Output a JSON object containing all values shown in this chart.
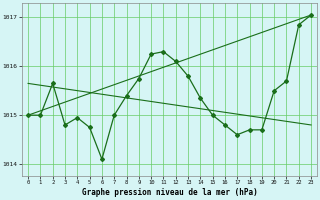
{
  "title": "Graphe pression niveau de la mer (hPa)",
  "bg_color": "#d6f5f5",
  "grid_color": "#66cc66",
  "line_color": "#1a6e1a",
  "hours": [
    0,
    1,
    2,
    3,
    4,
    5,
    6,
    7,
    8,
    9,
    10,
    11,
    12,
    13,
    14,
    15,
    16,
    17,
    18,
    19,
    20,
    21,
    22,
    23
  ],
  "pressure": [
    1015.0,
    1015.0,
    1015.65,
    1014.8,
    1014.95,
    1014.75,
    1014.1,
    1015.0,
    1015.4,
    1015.75,
    1016.25,
    1016.3,
    1016.1,
    1015.8,
    1015.35,
    1015.0,
    1014.8,
    1014.6,
    1014.7,
    1014.7,
    1015.5,
    1015.7,
    1016.85,
    1017.05
  ],
  "trend1_x": [
    0,
    23
  ],
  "trend1_y": [
    1015.0,
    1017.05
  ],
  "trend2_x": [
    0,
    23
  ],
  "trend2_y": [
    1015.65,
    1014.8
  ],
  "ylim": [
    1013.75,
    1017.3
  ],
  "xlim": [
    -0.5,
    23.5
  ],
  "yticks": [
    1014,
    1015,
    1016,
    1017
  ],
  "xticks": [
    0,
    1,
    2,
    3,
    4,
    5,
    6,
    7,
    8,
    9,
    10,
    11,
    12,
    13,
    14,
    15,
    16,
    17,
    18,
    19,
    20,
    21,
    22,
    23
  ],
  "figsize": [
    3.2,
    2.0
  ],
  "dpi": 100
}
